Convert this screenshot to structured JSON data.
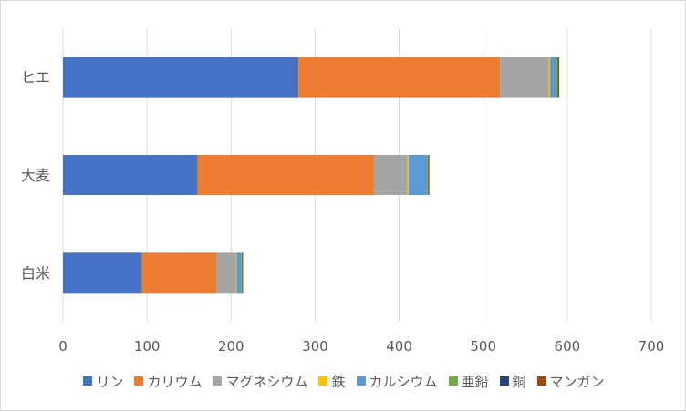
{
  "chart_data": {
    "type": "bar",
    "orientation": "horizontal",
    "stacked": true,
    "title": "",
    "xlabel": "",
    "ylabel": "",
    "categories": [
      "白米",
      "大麦",
      "ヒエ"
    ],
    "xlim": [
      0,
      700
    ],
    "xticks": [
      0,
      100,
      200,
      300,
      400,
      500,
      600,
      700
    ],
    "grid": "vertical",
    "legend_position": "bottom",
    "series": [
      {
        "name": "リン",
        "color": "#4472C4",
        "values": [
          94,
          160,
          280
        ]
      },
      {
        "name": "カリウム",
        "color": "#ED7D31",
        "values": [
          89,
          210,
          240
        ]
      },
      {
        "name": "マグネシウム",
        "color": "#A5A5A5",
        "values": [
          23,
          40,
          58
        ]
      },
      {
        "name": "鉄",
        "color": "#FFC000",
        "values": [
          0.8,
          1.2,
          1.6
        ]
      },
      {
        "name": "カルシウム",
        "color": "#5B9BD5",
        "values": [
          5,
          22,
          7
        ]
      },
      {
        "name": "亜鉛",
        "color": "#70AD47",
        "values": [
          1.4,
          1.4,
          2.2
        ]
      },
      {
        "name": "銅",
        "color": "#264478",
        "values": [
          0.2,
          0.4,
          0.3
        ]
      },
      {
        "name": "マンガン",
        "color": "#9E480E",
        "values": [
          0.8,
          0.9,
          1.4
        ]
      }
    ]
  }
}
